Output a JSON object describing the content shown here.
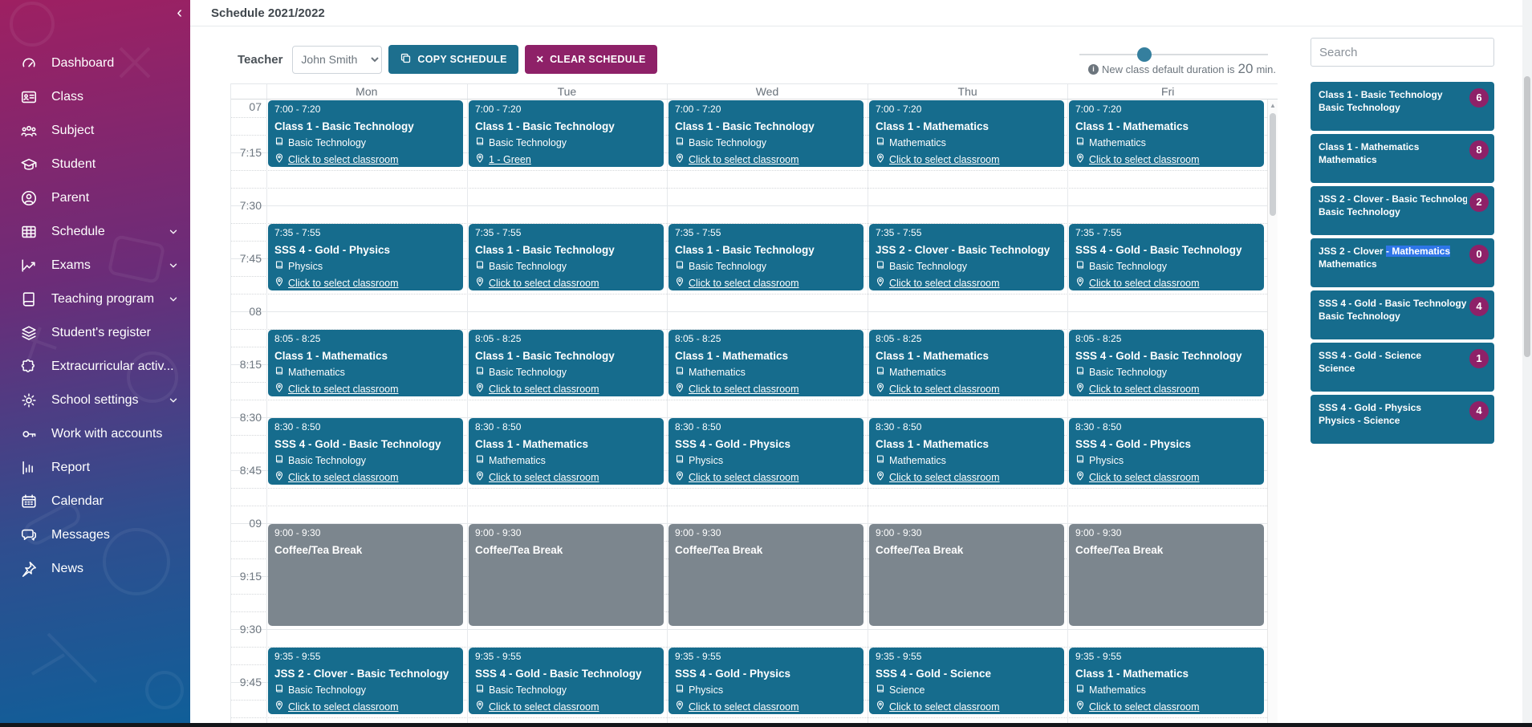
{
  "app": {
    "title": "Schedule 2021/2022",
    "collapse_icon": "chevron-left-icon"
  },
  "sidebar": {
    "items": [
      {
        "label": "Dashboard",
        "icon": "dashboard-icon"
      },
      {
        "label": "Class",
        "icon": "class-icon"
      },
      {
        "label": "Subject",
        "icon": "subject-icon"
      },
      {
        "label": "Student",
        "icon": "student-icon"
      },
      {
        "label": "Parent",
        "icon": "parent-icon"
      },
      {
        "label": "Schedule",
        "icon": "schedule-icon",
        "chevron": true
      },
      {
        "label": "Exams",
        "icon": "exams-icon",
        "chevron": true
      },
      {
        "label": "Teaching program",
        "icon": "teaching-program-icon",
        "chevron": true
      },
      {
        "label": "Student's register",
        "icon": "students-register-icon"
      },
      {
        "label": "Extracurricular activ...",
        "icon": "extracurricular-icon",
        "chevron": true
      },
      {
        "label": "School settings",
        "icon": "school-settings-icon",
        "chevron": true
      },
      {
        "label": "Work with accounts",
        "icon": "work-with-accounts-icon"
      },
      {
        "label": "Report",
        "icon": "report-icon"
      },
      {
        "label": "Calendar",
        "icon": "calendar-icon"
      },
      {
        "label": "Messages",
        "icon": "messages-icon"
      },
      {
        "label": "News",
        "icon": "news-icon"
      }
    ]
  },
  "toolbar": {
    "teacher_label": "Teacher",
    "teacher_value": "John Smith",
    "copy_label": "COPY SCHEDULE",
    "copy_icon": "copy-icon",
    "clear_label": "CLEAR SCHEDULE",
    "clear_icon": "x-icon",
    "duration_prefix": "New class default duration is",
    "duration_value": "20",
    "duration_suffix": "min.",
    "info_icon": "info-icon"
  },
  "calendar": {
    "days": [
      "Mon",
      "Tue",
      "Wed",
      "Thu",
      "Fri"
    ],
    "time_labels": [
      {
        "text": "07",
        "minutes": 0
      },
      {
        "text": "7:15",
        "minutes": 15
      },
      {
        "text": "7:30",
        "minutes": 30
      },
      {
        "text": "7:45",
        "minutes": 45
      },
      {
        "text": "08",
        "minutes": 60
      },
      {
        "text": "8:15",
        "minutes": 75
      },
      {
        "text": "8:30",
        "minutes": 90
      },
      {
        "text": "8:45",
        "minutes": 105
      },
      {
        "text": "09",
        "minutes": 120
      },
      {
        "text": "9:15",
        "minutes": 135
      },
      {
        "text": "9:30",
        "minutes": 150
      },
      {
        "text": "9:45",
        "minutes": 165
      }
    ],
    "subject_icon": "book-icon",
    "classroom_icon": "location-pin-icon",
    "events": [
      {
        "day": 0,
        "start": "7:00",
        "end": "7:20",
        "title": "Class 1 - Basic Technology",
        "subject": "Basic Technology",
        "classroom": "Click to select classroom",
        "type": "class"
      },
      {
        "day": 1,
        "start": "7:00",
        "end": "7:20",
        "title": "Class 1 - Basic Technology",
        "subject": "Basic Technology",
        "classroom": "1 - Green",
        "type": "class"
      },
      {
        "day": 2,
        "start": "7:00",
        "end": "7:20",
        "title": "Class 1 - Basic Technology",
        "subject": "Basic Technology",
        "classroom": "Click to select classroom",
        "type": "class"
      },
      {
        "day": 3,
        "start": "7:00",
        "end": "7:20",
        "title": "Class 1 - Mathematics",
        "subject": "Mathematics",
        "classroom": "Click to select classroom",
        "type": "class"
      },
      {
        "day": 4,
        "start": "7:00",
        "end": "7:20",
        "title": "Class 1 - Mathematics",
        "subject": "Mathematics",
        "classroom": "Click to select classroom",
        "type": "class"
      },
      {
        "day": 0,
        "start": "7:35",
        "end": "7:55",
        "title": "SSS 4 - Gold - Physics",
        "subject": "Physics",
        "classroom": "Click to select classroom",
        "type": "class"
      },
      {
        "day": 1,
        "start": "7:35",
        "end": "7:55",
        "title": "Class 1 - Basic Technology",
        "subject": "Basic Technology",
        "classroom": "Click to select classroom",
        "type": "class"
      },
      {
        "day": 2,
        "start": "7:35",
        "end": "7:55",
        "title": "Class 1 - Basic Technology",
        "subject": "Basic Technology",
        "classroom": "Click to select classroom",
        "type": "class"
      },
      {
        "day": 3,
        "start": "7:35",
        "end": "7:55",
        "title": "JSS 2 - Clover - Basic Technology",
        "subject": "Basic Technology",
        "classroom": "Click to select classroom",
        "type": "class"
      },
      {
        "day": 4,
        "start": "7:35",
        "end": "7:55",
        "title": "SSS 4 - Gold - Basic Technology",
        "subject": "Basic Technology",
        "classroom": "Click to select classroom",
        "type": "class"
      },
      {
        "day": 0,
        "start": "8:05",
        "end": "8:25",
        "title": "Class 1 - Mathematics",
        "subject": "Mathematics",
        "classroom": "Click to select classroom",
        "type": "class"
      },
      {
        "day": 1,
        "start": "8:05",
        "end": "8:25",
        "title": "Class 1 - Basic Technology",
        "subject": "Basic Technology",
        "classroom": "Click to select classroom",
        "type": "class"
      },
      {
        "day": 2,
        "start": "8:05",
        "end": "8:25",
        "title": "Class 1 - Mathematics",
        "subject": "Mathematics",
        "classroom": "Click to select classroom",
        "type": "class"
      },
      {
        "day": 3,
        "start": "8:05",
        "end": "8:25",
        "title": "Class 1 - Mathematics",
        "subject": "Mathematics",
        "classroom": "Click to select classroom",
        "type": "class"
      },
      {
        "day": 4,
        "start": "8:05",
        "end": "8:25",
        "title": "SSS 4 - Gold - Basic Technology",
        "subject": "Basic Technology",
        "classroom": "Click to select classroom",
        "type": "class"
      },
      {
        "day": 0,
        "start": "8:30",
        "end": "8:50",
        "title": "SSS 4 - Gold - Basic Technology",
        "subject": "Basic Technology",
        "classroom": "Click to select classroom",
        "type": "class"
      },
      {
        "day": 1,
        "start": "8:30",
        "end": "8:50",
        "title": "Class 1 - Mathematics",
        "subject": "Mathematics",
        "classroom": "Click to select classroom",
        "type": "class"
      },
      {
        "day": 2,
        "start": "8:30",
        "end": "8:50",
        "title": "SSS 4 - Gold - Physics",
        "subject": "Physics",
        "classroom": "Click to select classroom",
        "type": "class"
      },
      {
        "day": 3,
        "start": "8:30",
        "end": "8:50",
        "title": "Class 1 - Mathematics",
        "subject": "Mathematics",
        "classroom": "Click to select classroom",
        "type": "class"
      },
      {
        "day": 4,
        "start": "8:30",
        "end": "8:50",
        "title": "SSS 4 - Gold - Physics",
        "subject": "Physics",
        "classroom": "Click to select classroom",
        "type": "class"
      },
      {
        "day": 0,
        "start": "9:00",
        "end": "9:30",
        "title": "Coffee/Tea Break",
        "type": "break"
      },
      {
        "day": 1,
        "start": "9:00",
        "end": "9:30",
        "title": "Coffee/Tea Break",
        "type": "break"
      },
      {
        "day": 2,
        "start": "9:00",
        "end": "9:30",
        "title": "Coffee/Tea Break",
        "type": "break"
      },
      {
        "day": 3,
        "start": "9:00",
        "end": "9:30",
        "title": "Coffee/Tea Break",
        "type": "break"
      },
      {
        "day": 4,
        "start": "9:00",
        "end": "9:30",
        "title": "Coffee/Tea Break",
        "type": "break"
      },
      {
        "day": 0,
        "start": "9:35",
        "end": "9:55",
        "title": "JSS 2 - Clover - Basic Technology",
        "subject": "Basic Technology",
        "classroom": "Click to select classroom",
        "type": "class"
      },
      {
        "day": 1,
        "start": "9:35",
        "end": "9:55",
        "title": "SSS 4 - Gold - Basic Technology",
        "subject": "Basic Technology",
        "classroom": "Click to select classroom",
        "type": "class"
      },
      {
        "day": 2,
        "start": "9:35",
        "end": "9:55",
        "title": "SSS 4 - Gold - Physics",
        "subject": "Physics",
        "classroom": "Click to select classroom",
        "type": "class"
      },
      {
        "day": 3,
        "start": "9:35",
        "end": "9:55",
        "title": "SSS 4 - Gold - Science",
        "subject": "Science",
        "classroom": "Click to select classroom",
        "type": "class"
      },
      {
        "day": 4,
        "start": "9:35",
        "end": "9:55",
        "title": "Class 1 - Mathematics",
        "subject": "Mathematics",
        "classroom": "Click to select classroom",
        "type": "class"
      }
    ]
  },
  "class_panel": {
    "search_placeholder": "Search",
    "cards": [
      {
        "title": "Class 1 - Basic Technology",
        "subject": "Basic Technology",
        "count": "6"
      },
      {
        "title": "Class 1 - Mathematics",
        "subject": "Mathematics",
        "count": "8"
      },
      {
        "title": "JSS 2 - Clover - Basic Technology",
        "subject": "Basic Technology",
        "count": "2"
      },
      {
        "title": "JSS 2 - Clover ",
        "title_highlight": "- Mathematics",
        "subject": "Mathematics",
        "count": "0"
      },
      {
        "title": "SSS 4 - Gold - Basic Technology",
        "subject": "Basic Technology",
        "count": "4"
      },
      {
        "title": "SSS 4 - Gold - Science",
        "subject": "Science",
        "count": "1"
      },
      {
        "title": "SSS 4 - Gold - Physics",
        "subject": "Physics - Science",
        "count": "4"
      }
    ]
  },
  "colors": {
    "event_teal": "#166c8d",
    "break_gray": "#7c868e",
    "button_magenta": "#8e2168",
    "badge_magenta": "#8e2168",
    "selection_blue": "#2e75e8",
    "sidebar_top": "#9e2062",
    "sidebar_bottom": "#0f5f99"
  }
}
